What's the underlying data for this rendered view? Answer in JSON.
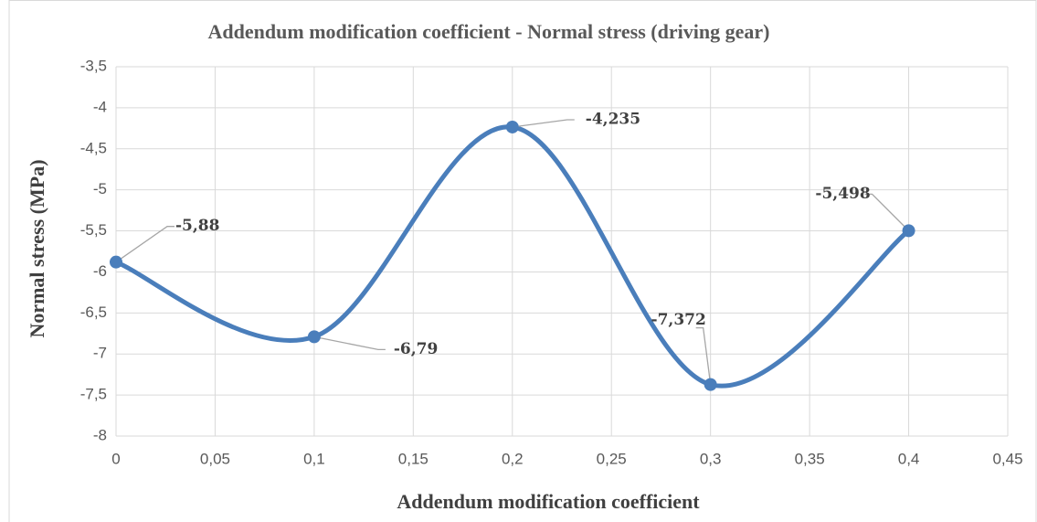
{
  "chart_data": {
    "type": "line",
    "title": "Addendum modification coefficient - Normal stress (driving gear)",
    "xlabel": "Addendum modification coefficient",
    "ylabel": "Normal stress (MPa)",
    "x": [
      0,
      0.1,
      0.2,
      0.3,
      0.4
    ],
    "series": [
      {
        "name": "Normal stress",
        "color": "#4a7ebb",
        "values": [
          -5.88,
          -6.79,
          -4.235,
          -7.372,
          -5.498
        ],
        "value_labels": [
          "-5,88",
          "-6,79",
          "-4,235",
          "-7,372",
          "-5,498"
        ]
      }
    ],
    "xlim": [
      0,
      0.45
    ],
    "xticks": [
      0,
      {
        "value": 0.05,
        "label": "0,05"
      },
      {
        "value": 0.1,
        "label": "0,1"
      },
      {
        "value": 0.15,
        "label": "0,15"
      },
      {
        "value": 0.2,
        "label": "0,2"
      },
      {
        "value": 0.25,
        "label": "0,25"
      },
      {
        "value": 0.3,
        "label": "0,3"
      },
      {
        "value": 0.35,
        "label": "0,35"
      },
      {
        "value": 0.4,
        "label": "0,4"
      },
      {
        "value": 0.45,
        "label": "0,45"
      }
    ],
    "ylim": [
      -8,
      -3.5
    ],
    "yticks": [
      -8,
      {
        "value": -7.5,
        "label": "-7,5"
      },
      -7,
      {
        "value": -6.5,
        "label": "-6,5"
      },
      -6,
      {
        "value": -5.5,
        "label": "-5,5"
      },
      -5,
      {
        "value": -4.5,
        "label": "-4,5"
      },
      -4,
      {
        "value": -3.5,
        "label": "-3,5"
      }
    ],
    "grid": true,
    "smooth": true
  }
}
